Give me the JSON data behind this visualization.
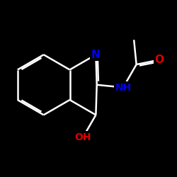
{
  "bg": "#000000",
  "bond_color": "#ffffff",
  "lw": 1.8,
  "atom_colors": {
    "N": "#0000ee",
    "O": "#dd0000"
  },
  "fs": 11,
  "fs_small": 10,
  "dbo": 0.055
}
